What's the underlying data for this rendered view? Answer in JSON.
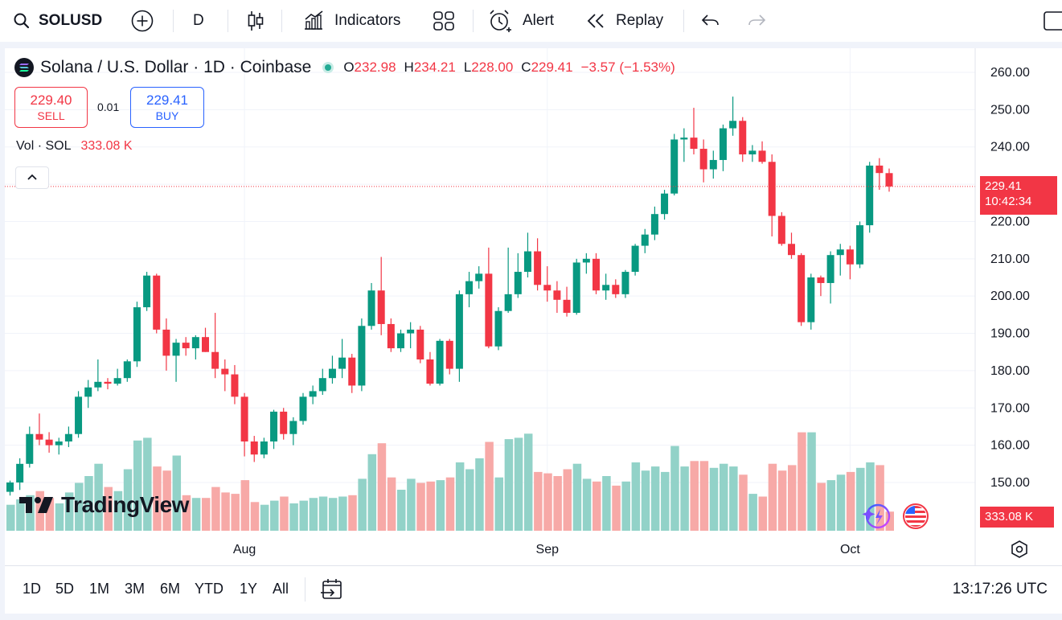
{
  "toolbar": {
    "symbol": "SOLUSD",
    "interval": "D",
    "indicators_label": "Indicators",
    "alert_label": "Alert",
    "replay_label": "Replay"
  },
  "legend": {
    "title": "Solana / U.S. Dollar · 1D · Coinbase",
    "open_key": "O",
    "open": "232.98",
    "high_key": "H",
    "high": "234.21",
    "low_key": "L",
    "low": "228.00",
    "close_key": "C",
    "close": "229.41",
    "change": "−3.57 (−1.53%)"
  },
  "trade": {
    "sell_price": "229.40",
    "sell_label": "SELL",
    "spread": "0.01",
    "buy_price": "229.41",
    "buy_label": "BUY"
  },
  "volume_legend": {
    "label": "Vol · SOL",
    "value": "333.08 K"
  },
  "brand": {
    "name": "TradingView"
  },
  "last_price_tag": {
    "price": "229.41",
    "countdown": "10:42:34"
  },
  "volume_tag": "333.08 K",
  "bottom": {
    "ranges": [
      "1D",
      "5D",
      "1M",
      "3M",
      "6M",
      "YTD",
      "1Y",
      "All"
    ],
    "clock": "13:17:26 UTC"
  },
  "colors": {
    "up": "#089981",
    "down": "#f23645",
    "up_vol": "#92d2c8",
    "down_vol": "#f7a9a7",
    "accent": "#2962ff"
  },
  "chart_data": {
    "type": "candlestick",
    "symbol": "SOLUSD",
    "interval": "1D",
    "y_ticks": [
      "260.00",
      "250.00",
      "240.00",
      "230.00",
      "220.00",
      "210.00",
      "200.00",
      "190.00",
      "180.00",
      "170.00",
      "160.00",
      "150.00"
    ],
    "x_ticks": [
      "Aug",
      "Sep",
      "Oct"
    ],
    "ylim": [
      146,
      262
    ],
    "grid": true,
    "candles": [
      {
        "o": 147.5,
        "h": 150.5,
        "l": 146.5,
        "c": 150.0,
        "v": 95
      },
      {
        "o": 150.0,
        "h": 156.5,
        "l": 148.0,
        "c": 155.0,
        "v": 115
      },
      {
        "o": 155.0,
        "h": 165.0,
        "l": 154.0,
        "c": 163.0,
        "v": 130
      },
      {
        "o": 163.0,
        "h": 168.5,
        "l": 160.0,
        "c": 161.5,
        "v": 145
      },
      {
        "o": 161.5,
        "h": 163.5,
        "l": 158.0,
        "c": 160.0,
        "v": 120
      },
      {
        "o": 160.0,
        "h": 162.0,
        "l": 157.5,
        "c": 161.0,
        "v": 100
      },
      {
        "o": 161.0,
        "h": 165.0,
        "l": 159.5,
        "c": 163.0,
        "v": 140
      },
      {
        "o": 163.0,
        "h": 174.5,
        "l": 162.0,
        "c": 173.0,
        "v": 175
      },
      {
        "o": 173.0,
        "h": 177.5,
        "l": 170.0,
        "c": 175.5,
        "v": 200
      },
      {
        "o": 175.5,
        "h": 183.0,
        "l": 174.5,
        "c": 177.0,
        "v": 245
      },
      {
        "o": 177.0,
        "h": 178.0,
        "l": 175.0,
        "c": 176.5,
        "v": 160
      },
      {
        "o": 176.5,
        "h": 180.5,
        "l": 176.0,
        "c": 178.0,
        "v": 145
      },
      {
        "o": 178.0,
        "h": 183.0,
        "l": 177.0,
        "c": 182.5,
        "v": 225
      },
      {
        "o": 182.5,
        "h": 198.5,
        "l": 181.0,
        "c": 197.0,
        "v": 330
      },
      {
        "o": 197.0,
        "h": 206.5,
        "l": 196.0,
        "c": 205.5,
        "v": 340
      },
      {
        "o": 205.5,
        "h": 206.0,
        "l": 190.0,
        "c": 191.0,
        "v": 235
      },
      {
        "o": 191.0,
        "h": 194.0,
        "l": 180.0,
        "c": 184.0,
        "v": 220
      },
      {
        "o": 184.0,
        "h": 188.5,
        "l": 177.0,
        "c": 187.5,
        "v": 275
      },
      {
        "o": 187.5,
        "h": 189.0,
        "l": 184.0,
        "c": 186.0,
        "v": 130
      },
      {
        "o": 186.0,
        "h": 189.5,
        "l": 183.0,
        "c": 189.0,
        "v": 120
      },
      {
        "o": 189.0,
        "h": 191.5,
        "l": 185.0,
        "c": 185.0,
        "v": 120
      },
      {
        "o": 185.0,
        "h": 195.5,
        "l": 178.0,
        "c": 180.5,
        "v": 160
      },
      {
        "o": 180.5,
        "h": 183.0,
        "l": 174.5,
        "c": 179.0,
        "v": 140
      },
      {
        "o": 179.0,
        "h": 181.5,
        "l": 171.0,
        "c": 173.0,
        "v": 135
      },
      {
        "o": 173.0,
        "h": 174.0,
        "l": 157.0,
        "c": 161.0,
        "v": 185
      },
      {
        "o": 161.0,
        "h": 162.5,
        "l": 155.5,
        "c": 157.5,
        "v": 105
      },
      {
        "o": 157.5,
        "h": 162.0,
        "l": 156.5,
        "c": 161.0,
        "v": 95
      },
      {
        "o": 161.0,
        "h": 169.5,
        "l": 159.0,
        "c": 169.0,
        "v": 110
      },
      {
        "o": 169.0,
        "h": 170.0,
        "l": 161.5,
        "c": 163.0,
        "v": 125
      },
      {
        "o": 163.0,
        "h": 167.5,
        "l": 160.0,
        "c": 166.5,
        "v": 100
      },
      {
        "o": 166.5,
        "h": 174.0,
        "l": 165.5,
        "c": 173.0,
        "v": 110
      },
      {
        "o": 173.0,
        "h": 176.0,
        "l": 171.0,
        "c": 174.5,
        "v": 120
      },
      {
        "o": 174.5,
        "h": 180.5,
        "l": 173.5,
        "c": 178.0,
        "v": 125
      },
      {
        "o": 178.0,
        "h": 184.0,
        "l": 176.5,
        "c": 180.5,
        "v": 120
      },
      {
        "o": 180.5,
        "h": 188.5,
        "l": 178.0,
        "c": 183.5,
        "v": 125
      },
      {
        "o": 183.5,
        "h": 184.5,
        "l": 174.0,
        "c": 176.0,
        "v": 130
      },
      {
        "o": 176.0,
        "h": 194.0,
        "l": 174.5,
        "c": 192.0,
        "v": 190
      },
      {
        "o": 192.0,
        "h": 203.5,
        "l": 191.0,
        "c": 201.5,
        "v": 280
      },
      {
        "o": 201.5,
        "h": 210.5,
        "l": 189.5,
        "c": 192.5,
        "v": 320
      },
      {
        "o": 192.5,
        "h": 194.0,
        "l": 185.0,
        "c": 186.0,
        "v": 195
      },
      {
        "o": 186.0,
        "h": 191.0,
        "l": 185.0,
        "c": 190.0,
        "v": 150
      },
      {
        "o": 190.0,
        "h": 193.0,
        "l": 186.0,
        "c": 191.0,
        "v": 190
      },
      {
        "o": 191.0,
        "h": 192.0,
        "l": 182.0,
        "c": 183.0,
        "v": 175
      },
      {
        "o": 183.0,
        "h": 185.0,
        "l": 176.0,
        "c": 176.5,
        "v": 180
      },
      {
        "o": 176.5,
        "h": 188.5,
        "l": 176.0,
        "c": 188.0,
        "v": 185
      },
      {
        "o": 188.0,
        "h": 188.5,
        "l": 179.0,
        "c": 180.5,
        "v": 195
      },
      {
        "o": 180.5,
        "h": 201.5,
        "l": 177.0,
        "c": 200.5,
        "v": 250
      },
      {
        "o": 200.5,
        "h": 206.5,
        "l": 197.0,
        "c": 204.0,
        "v": 225
      },
      {
        "o": 204.0,
        "h": 208.0,
        "l": 202.0,
        "c": 206.0,
        "v": 265
      },
      {
        "o": 206.0,
        "h": 213.0,
        "l": 186.0,
        "c": 186.5,
        "v": 325
      },
      {
        "o": 186.5,
        "h": 197.0,
        "l": 185.5,
        "c": 196.0,
        "v": 195
      },
      {
        "o": 196.0,
        "h": 213.0,
        "l": 195.5,
        "c": 200.5,
        "v": 335
      },
      {
        "o": 200.5,
        "h": 211.5,
        "l": 199.5,
        "c": 206.5,
        "v": 340
      },
      {
        "o": 206.5,
        "h": 217.0,
        "l": 205.0,
        "c": 212.0,
        "v": 355
      },
      {
        "o": 212.0,
        "h": 215.5,
        "l": 201.5,
        "c": 203.0,
        "v": 215
      },
      {
        "o": 203.0,
        "h": 208.0,
        "l": 198.5,
        "c": 201.5,
        "v": 210
      },
      {
        "o": 201.5,
        "h": 204.0,
        "l": 195.5,
        "c": 199.0,
        "v": 200
      },
      {
        "o": 199.0,
        "h": 202.5,
        "l": 194.5,
        "c": 195.5,
        "v": 225
      },
      {
        "o": 195.5,
        "h": 210.0,
        "l": 195.0,
        "c": 209.0,
        "v": 245
      },
      {
        "o": 209.0,
        "h": 211.5,
        "l": 206.0,
        "c": 210.0,
        "v": 190
      },
      {
        "o": 210.0,
        "h": 211.5,
        "l": 200.5,
        "c": 201.5,
        "v": 180
      },
      {
        "o": 201.5,
        "h": 206.0,
        "l": 199.0,
        "c": 203.0,
        "v": 200
      },
      {
        "o": 203.0,
        "h": 204.5,
        "l": 199.5,
        "c": 200.5,
        "v": 165
      },
      {
        "o": 200.5,
        "h": 207.0,
        "l": 199.5,
        "c": 206.5,
        "v": 180
      },
      {
        "o": 206.5,
        "h": 214.0,
        "l": 205.5,
        "c": 213.5,
        "v": 250
      },
      {
        "o": 213.5,
        "h": 218.0,
        "l": 211.5,
        "c": 216.5,
        "v": 220
      },
      {
        "o": 216.5,
        "h": 224.0,
        "l": 215.0,
        "c": 222.0,
        "v": 235
      },
      {
        "o": 222.0,
        "h": 228.5,
        "l": 220.5,
        "c": 227.5,
        "v": 215
      },
      {
        "o": 227.5,
        "h": 243.5,
        "l": 227.0,
        "c": 242.0,
        "v": 310
      },
      {
        "o": 242.0,
        "h": 245.0,
        "l": 236.0,
        "c": 242.5,
        "v": 235
      },
      {
        "o": 242.5,
        "h": 250.5,
        "l": 238.0,
        "c": 239.5,
        "v": 255
      },
      {
        "o": 239.5,
        "h": 242.0,
        "l": 230.5,
        "c": 234.0,
        "v": 255
      },
      {
        "o": 234.0,
        "h": 239.0,
        "l": 231.5,
        "c": 236.5,
        "v": 230
      },
      {
        "o": 236.5,
        "h": 246.0,
        "l": 233.5,
        "c": 245.0,
        "v": 245
      },
      {
        "o": 245.0,
        "h": 253.5,
        "l": 243.0,
        "c": 247.0,
        "v": 235
      },
      {
        "o": 247.0,
        "h": 248.0,
        "l": 236.0,
        "c": 238.0,
        "v": 205
      },
      {
        "o": 238.0,
        "h": 240.5,
        "l": 236.0,
        "c": 239.0,
        "v": 135
      },
      {
        "o": 239.0,
        "h": 241.5,
        "l": 235.5,
        "c": 236.0,
        "v": 125
      },
      {
        "o": 236.0,
        "h": 238.0,
        "l": 216.0,
        "c": 221.5,
        "v": 245
      },
      {
        "o": 221.5,
        "h": 222.5,
        "l": 213.5,
        "c": 214.0,
        "v": 220
      },
      {
        "o": 214.0,
        "h": 217.0,
        "l": 210.0,
        "c": 211.0,
        "v": 240
      },
      {
        "o": 211.0,
        "h": 211.5,
        "l": 192.0,
        "c": 193.0,
        "v": 360
      },
      {
        "o": 193.0,
        "h": 206.0,
        "l": 191.0,
        "c": 205.0,
        "v": 360
      },
      {
        "o": 205.0,
        "h": 205.5,
        "l": 200.0,
        "c": 203.5,
        "v": 175
      },
      {
        "o": 203.5,
        "h": 212.0,
        "l": 198.0,
        "c": 211.0,
        "v": 185
      },
      {
        "o": 211.0,
        "h": 214.0,
        "l": 205.5,
        "c": 212.5,
        "v": 205
      },
      {
        "o": 212.5,
        "h": 213.5,
        "l": 204.5,
        "c": 208.5,
        "v": 215
      },
      {
        "o": 208.5,
        "h": 220.0,
        "l": 207.5,
        "c": 219.0,
        "v": 230
      },
      {
        "o": 219.0,
        "h": 236.0,
        "l": 217.0,
        "c": 235.0,
        "v": 250
      },
      {
        "o": 235.0,
        "h": 237.0,
        "l": 228.5,
        "c": 233.0,
        "v": 240
      },
      {
        "o": 232.98,
        "h": 234.21,
        "l": 228.0,
        "c": 229.41,
        "v": 70
      }
    ]
  }
}
